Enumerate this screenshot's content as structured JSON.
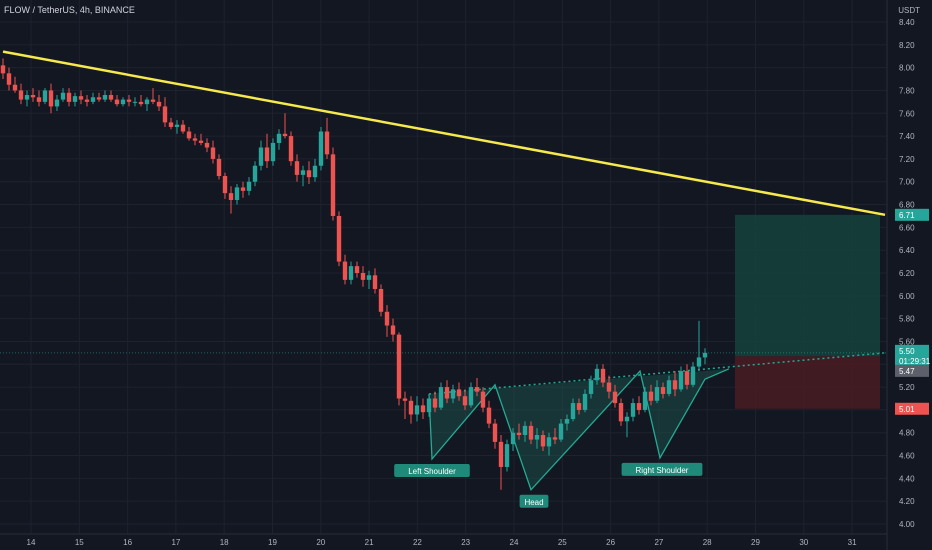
{
  "header": {
    "symbol_line": "FLOW / TetherUS, 4h, BINANCE",
    "currency": "USDT"
  },
  "colors": {
    "background": "#131722",
    "grid": "#1e222d",
    "bull": "#26a69a",
    "bear": "#ef5350",
    "trendline": "#f5e94c",
    "pattern_fill": "#1f6b5f",
    "pattern_line": "#22ab94",
    "profit_zone": "#15423c",
    "loss_zone": "#4a1c22",
    "text": "#b2b5be"
  },
  "chart_data": {
    "type": "candlestick",
    "title": "FLOW / TetherUS, 4h, BINANCE",
    "timeframe": "4h",
    "exchange": "BINANCE",
    "ylim": [
      3.9,
      8.52
    ],
    "y_ticks": [
      "8.40",
      "8.20",
      "8.00",
      "7.80",
      "7.60",
      "7.40",
      "7.20",
      "7.00",
      "6.80",
      "6.60",
      "6.40",
      "6.20",
      "6.00",
      "5.80",
      "5.60",
      "5.40",
      "5.20",
      "5.00",
      "4.80",
      "4.60",
      "4.40",
      "4.20",
      "4.00"
    ],
    "x_ticks": [
      {
        "label": "14",
        "day": 14
      },
      {
        "label": "15",
        "day": 15
      },
      {
        "label": "16",
        "day": 16
      },
      {
        "label": "17",
        "day": 17
      },
      {
        "label": "18",
        "day": 18
      },
      {
        "label": "19",
        "day": 19
      },
      {
        "label": "20",
        "day": 20
      },
      {
        "label": "21",
        "day": 21
      },
      {
        "label": "22",
        "day": 22
      },
      {
        "label": "23",
        "day": 23
      },
      {
        "label": "24",
        "day": 24
      },
      {
        "label": "25",
        "day": 25
      },
      {
        "label": "26",
        "day": 26
      },
      {
        "label": "27",
        "day": 27
      },
      {
        "label": "28",
        "day": 28
      },
      {
        "label": "29",
        "day": 29
      },
      {
        "label": "30",
        "day": 30
      },
      {
        "label": "31",
        "day": 31
      }
    ],
    "candles": [
      [
        8.02,
        8.08,
        7.9,
        7.95
      ],
      [
        7.95,
        8.0,
        7.8,
        7.85
      ],
      [
        7.85,
        7.92,
        7.78,
        7.8
      ],
      [
        7.8,
        7.86,
        7.68,
        7.72
      ],
      [
        7.72,
        7.8,
        7.66,
        7.76
      ],
      [
        7.76,
        7.82,
        7.7,
        7.74
      ],
      [
        7.74,
        7.8,
        7.66,
        7.7
      ],
      [
        7.7,
        7.82,
        7.68,
        7.8
      ],
      [
        7.8,
        7.86,
        7.6,
        7.66
      ],
      [
        7.66,
        7.76,
        7.62,
        7.72
      ],
      [
        7.72,
        7.82,
        7.7,
        7.78
      ],
      [
        7.78,
        7.82,
        7.66,
        7.7
      ],
      [
        7.7,
        7.78,
        7.66,
        7.75
      ],
      [
        7.75,
        7.8,
        7.68,
        7.72
      ],
      [
        7.72,
        7.76,
        7.66,
        7.7
      ],
      [
        7.7,
        7.78,
        7.68,
        7.74
      ],
      [
        7.74,
        7.78,
        7.7,
        7.72
      ],
      [
        7.72,
        7.8,
        7.7,
        7.76
      ],
      [
        7.76,
        7.8,
        7.7,
        7.72
      ],
      [
        7.72,
        7.76,
        7.66,
        7.68
      ],
      [
        7.68,
        7.74,
        7.66,
        7.72
      ],
      [
        7.72,
        7.76,
        7.66,
        7.7
      ],
      [
        7.7,
        7.74,
        7.66,
        7.7
      ],
      [
        7.7,
        7.76,
        7.66,
        7.68
      ],
      [
        7.68,
        7.74,
        7.62,
        7.72
      ],
      [
        7.72,
        7.82,
        7.68,
        7.7
      ],
      [
        7.7,
        7.76,
        7.62,
        7.66
      ],
      [
        7.66,
        7.74,
        7.48,
        7.52
      ],
      [
        7.52,
        7.56,
        7.46,
        7.48
      ],
      [
        7.48,
        7.54,
        7.42,
        7.5
      ],
      [
        7.5,
        7.54,
        7.42,
        7.44
      ],
      [
        7.44,
        7.48,
        7.36,
        7.38
      ],
      [
        7.38,
        7.42,
        7.32,
        7.36
      ],
      [
        7.36,
        7.42,
        7.32,
        7.34
      ],
      [
        7.34,
        7.38,
        7.26,
        7.3
      ],
      [
        7.3,
        7.36,
        7.16,
        7.2
      ],
      [
        7.2,
        7.24,
        7.02,
        7.05
      ],
      [
        7.05,
        7.08,
        6.85,
        6.9
      ],
      [
        6.9,
        6.96,
        6.72,
        6.84
      ],
      [
        6.84,
        6.98,
        6.8,
        6.95
      ],
      [
        6.95,
        7.0,
        6.86,
        6.92
      ],
      [
        6.92,
        7.04,
        6.88,
        7.0
      ],
      [
        7.0,
        7.18,
        6.96,
        7.14
      ],
      [
        7.14,
        7.36,
        7.1,
        7.3
      ],
      [
        7.3,
        7.42,
        7.12,
        7.18
      ],
      [
        7.18,
        7.38,
        7.14,
        7.34
      ],
      [
        7.34,
        7.46,
        7.28,
        7.42
      ],
      [
        7.42,
        7.6,
        7.38,
        7.4
      ],
      [
        7.4,
        7.44,
        7.14,
        7.18
      ],
      [
        7.18,
        7.24,
        7.0,
        7.06
      ],
      [
        7.06,
        7.14,
        6.96,
        7.1
      ],
      [
        7.1,
        7.18,
        6.98,
        7.04
      ],
      [
        7.04,
        7.2,
        7.0,
        7.14
      ],
      [
        7.14,
        7.48,
        7.1,
        7.44
      ],
      [
        7.44,
        7.56,
        7.2,
        7.24
      ],
      [
        7.24,
        7.3,
        6.66,
        6.7
      ],
      [
        6.7,
        6.74,
        6.26,
        6.3
      ],
      [
        6.3,
        6.36,
        6.1,
        6.14
      ],
      [
        6.14,
        6.3,
        6.1,
        6.26
      ],
      [
        6.26,
        6.3,
        6.16,
        6.2
      ],
      [
        6.2,
        6.26,
        6.08,
        6.14
      ],
      [
        6.14,
        6.22,
        6.06,
        6.18
      ],
      [
        6.18,
        6.24,
        6.02,
        6.06
      ],
      [
        6.06,
        6.1,
        5.82,
        5.86
      ],
      [
        5.86,
        5.92,
        5.64,
        5.74
      ],
      [
        5.74,
        5.8,
        5.6,
        5.66
      ],
      [
        5.66,
        5.68,
        5.04,
        5.1
      ],
      [
        5.1,
        5.16,
        4.92,
        5.08
      ],
      [
        5.08,
        5.12,
        4.88,
        4.96
      ],
      [
        4.96,
        5.12,
        4.9,
        5.04
      ],
      [
        5.04,
        5.1,
        4.92,
        4.98
      ],
      [
        4.98,
        5.14,
        4.94,
        5.1
      ],
      [
        5.1,
        5.16,
        4.98,
        5.02
      ],
      [
        5.02,
        5.24,
        5.0,
        5.2
      ],
      [
        5.2,
        5.26,
        5.06,
        5.1
      ],
      [
        5.1,
        5.22,
        5.06,
        5.18
      ],
      [
        5.18,
        5.24,
        5.08,
        5.12
      ],
      [
        5.12,
        5.18,
        5.0,
        5.04
      ],
      [
        5.04,
        5.24,
        5.02,
        5.2
      ],
      [
        5.2,
        5.28,
        5.12,
        5.16
      ],
      [
        5.16,
        5.2,
        4.98,
        5.02
      ],
      [
        5.02,
        5.08,
        4.84,
        4.88
      ],
      [
        4.88,
        4.92,
        4.66,
        4.72
      ],
      [
        4.72,
        4.78,
        4.3,
        4.5
      ],
      [
        4.5,
        4.74,
        4.46,
        4.7
      ],
      [
        4.7,
        4.84,
        4.64,
        4.8
      ],
      [
        4.8,
        4.88,
        4.74,
        4.78
      ],
      [
        4.78,
        4.9,
        4.72,
        4.86
      ],
      [
        4.86,
        4.9,
        4.7,
        4.74
      ],
      [
        4.74,
        4.84,
        4.66,
        4.78
      ],
      [
        4.78,
        4.82,
        4.64,
        4.68
      ],
      [
        4.68,
        4.8,
        4.6,
        4.76
      ],
      [
        4.76,
        4.84,
        4.7,
        4.74
      ],
      [
        4.74,
        4.92,
        4.72,
        4.88
      ],
      [
        4.88,
        4.96,
        4.82,
        4.92
      ],
      [
        4.92,
        5.1,
        4.9,
        5.06
      ],
      [
        5.06,
        5.1,
        4.96,
        5.0
      ],
      [
        5.0,
        5.18,
        4.98,
        5.14
      ],
      [
        5.14,
        5.3,
        5.1,
        5.26
      ],
      [
        5.26,
        5.4,
        5.22,
        5.36
      ],
      [
        5.36,
        5.4,
        5.2,
        5.24
      ],
      [
        5.24,
        5.3,
        5.1,
        5.16
      ],
      [
        5.16,
        5.22,
        5.02,
        5.06
      ],
      [
        5.06,
        5.1,
        4.86,
        4.9
      ],
      [
        4.9,
        4.98,
        4.76,
        4.94
      ],
      [
        4.94,
        5.1,
        4.9,
        5.06
      ],
      [
        5.06,
        5.12,
        4.96,
        5.0
      ],
      [
        5.0,
        5.2,
        4.98,
        5.16
      ],
      [
        5.16,
        5.22,
        5.04,
        5.08
      ],
      [
        5.08,
        5.26,
        5.06,
        5.2
      ],
      [
        5.2,
        5.24,
        5.1,
        5.14
      ],
      [
        5.14,
        5.3,
        5.12,
        5.26
      ],
      [
        5.26,
        5.34,
        5.12,
        5.18
      ],
      [
        5.18,
        5.38,
        5.16,
        5.34
      ],
      [
        5.34,
        5.4,
        5.18,
        5.22
      ],
      [
        5.22,
        5.42,
        5.2,
        5.38
      ],
      [
        5.38,
        5.78,
        5.34,
        5.46
      ],
      [
        5.46,
        5.54,
        5.4,
        5.5
      ]
    ],
    "x_positions": [
      3,
      9,
      15,
      21,
      27,
      33,
      39,
      45,
      51,
      57,
      63,
      69,
      75,
      81,
      87,
      93,
      99,
      105,
      111,
      117,
      123,
      129,
      135,
      141,
      147,
      153,
      159,
      165,
      171,
      177,
      183,
      189,
      195,
      201,
      207,
      213,
      219,
      225,
      231,
      237,
      243,
      249,
      255,
      261,
      267,
      273,
      279,
      285,
      291,
      297,
      303,
      309,
      315,
      321,
      327,
      333,
      339,
      345,
      351,
      357,
      363,
      369,
      375,
      381,
      387,
      393,
      399,
      405,
      411,
      417,
      423,
      429,
      435,
      441,
      447,
      453,
      459,
      465,
      471,
      477,
      483,
      489,
      495,
      501,
      507,
      513,
      519,
      525,
      531,
      537,
      543,
      549,
      555,
      561,
      567,
      573,
      579,
      585,
      591,
      597,
      603,
      609,
      615,
      621,
      627,
      633,
      639,
      645,
      651,
      657,
      663,
      669,
      675,
      681,
      687,
      693,
      699,
      705
    ],
    "trendline": {
      "from": [
        3,
        8.14
      ],
      "to": [
        885,
        6.71
      ]
    },
    "neckline": {
      "from": [
        429,
        5.14
      ],
      "to": [
        885,
        5.5
      ]
    },
    "pattern_points": [
      [
        429,
        5.14
      ],
      [
        432,
        4.57
      ],
      [
        495,
        5.22
      ],
      [
        531,
        4.3
      ],
      [
        640,
        5.34
      ],
      [
        660,
        4.58
      ],
      [
        705,
        5.27
      ],
      [
        729,
        5.36
      ]
    ],
    "annotations": [
      {
        "text": "Left Shoulder",
        "at": [
          432,
          4.57
        ]
      },
      {
        "text": "Head",
        "at": [
          534,
          4.3
        ]
      },
      {
        "text": "Right Shoulder",
        "at": [
          662,
          4.58
        ]
      }
    ],
    "position": {
      "entry": 5.47,
      "target": 6.71,
      "stop": 5.01,
      "x_from": 735,
      "x_to": 880
    },
    "price_labels": [
      {
        "text": "6.71",
        "value": 6.71,
        "kind": "target"
      },
      {
        "text": "5.50",
        "value": 5.5,
        "kind": "last"
      },
      {
        "text": "01:29:31",
        "value": 5.45,
        "kind": "countdown"
      },
      {
        "text": "5.47",
        "value": 5.47,
        "kind": "entry"
      },
      {
        "text": "5.01",
        "value": 5.01,
        "kind": "stop"
      }
    ]
  }
}
